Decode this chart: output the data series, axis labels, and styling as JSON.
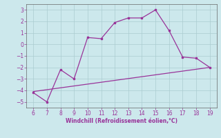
{
  "x_main": [
    6,
    7,
    8,
    9,
    10,
    11,
    12,
    13,
    14,
    15,
    16,
    17,
    18,
    19
  ],
  "y_main": [
    -4.2,
    -5.0,
    -2.2,
    -3.0,
    0.6,
    0.5,
    1.9,
    2.3,
    2.3,
    3.0,
    1.2,
    -1.1,
    -1.2,
    -2.0
  ],
  "trend_x": [
    6,
    19
  ],
  "trend_y": [
    -4.1,
    -2.0
  ],
  "xlabel": "Windchill (Refroidissement éolien,°C)",
  "xlim": [
    5.5,
    19.5
  ],
  "ylim": [
    -5.5,
    3.5
  ],
  "xticks": [
    6,
    7,
    8,
    9,
    10,
    11,
    12,
    13,
    14,
    15,
    16,
    17,
    18,
    19
  ],
  "yticks": [
    -5,
    -4,
    -3,
    -2,
    -1,
    0,
    1,
    2,
    3
  ],
  "line_color": "#993399",
  "bg_color": "#cce8ec",
  "grid_color": "#aaccd0",
  "spine_color": "#666666"
}
